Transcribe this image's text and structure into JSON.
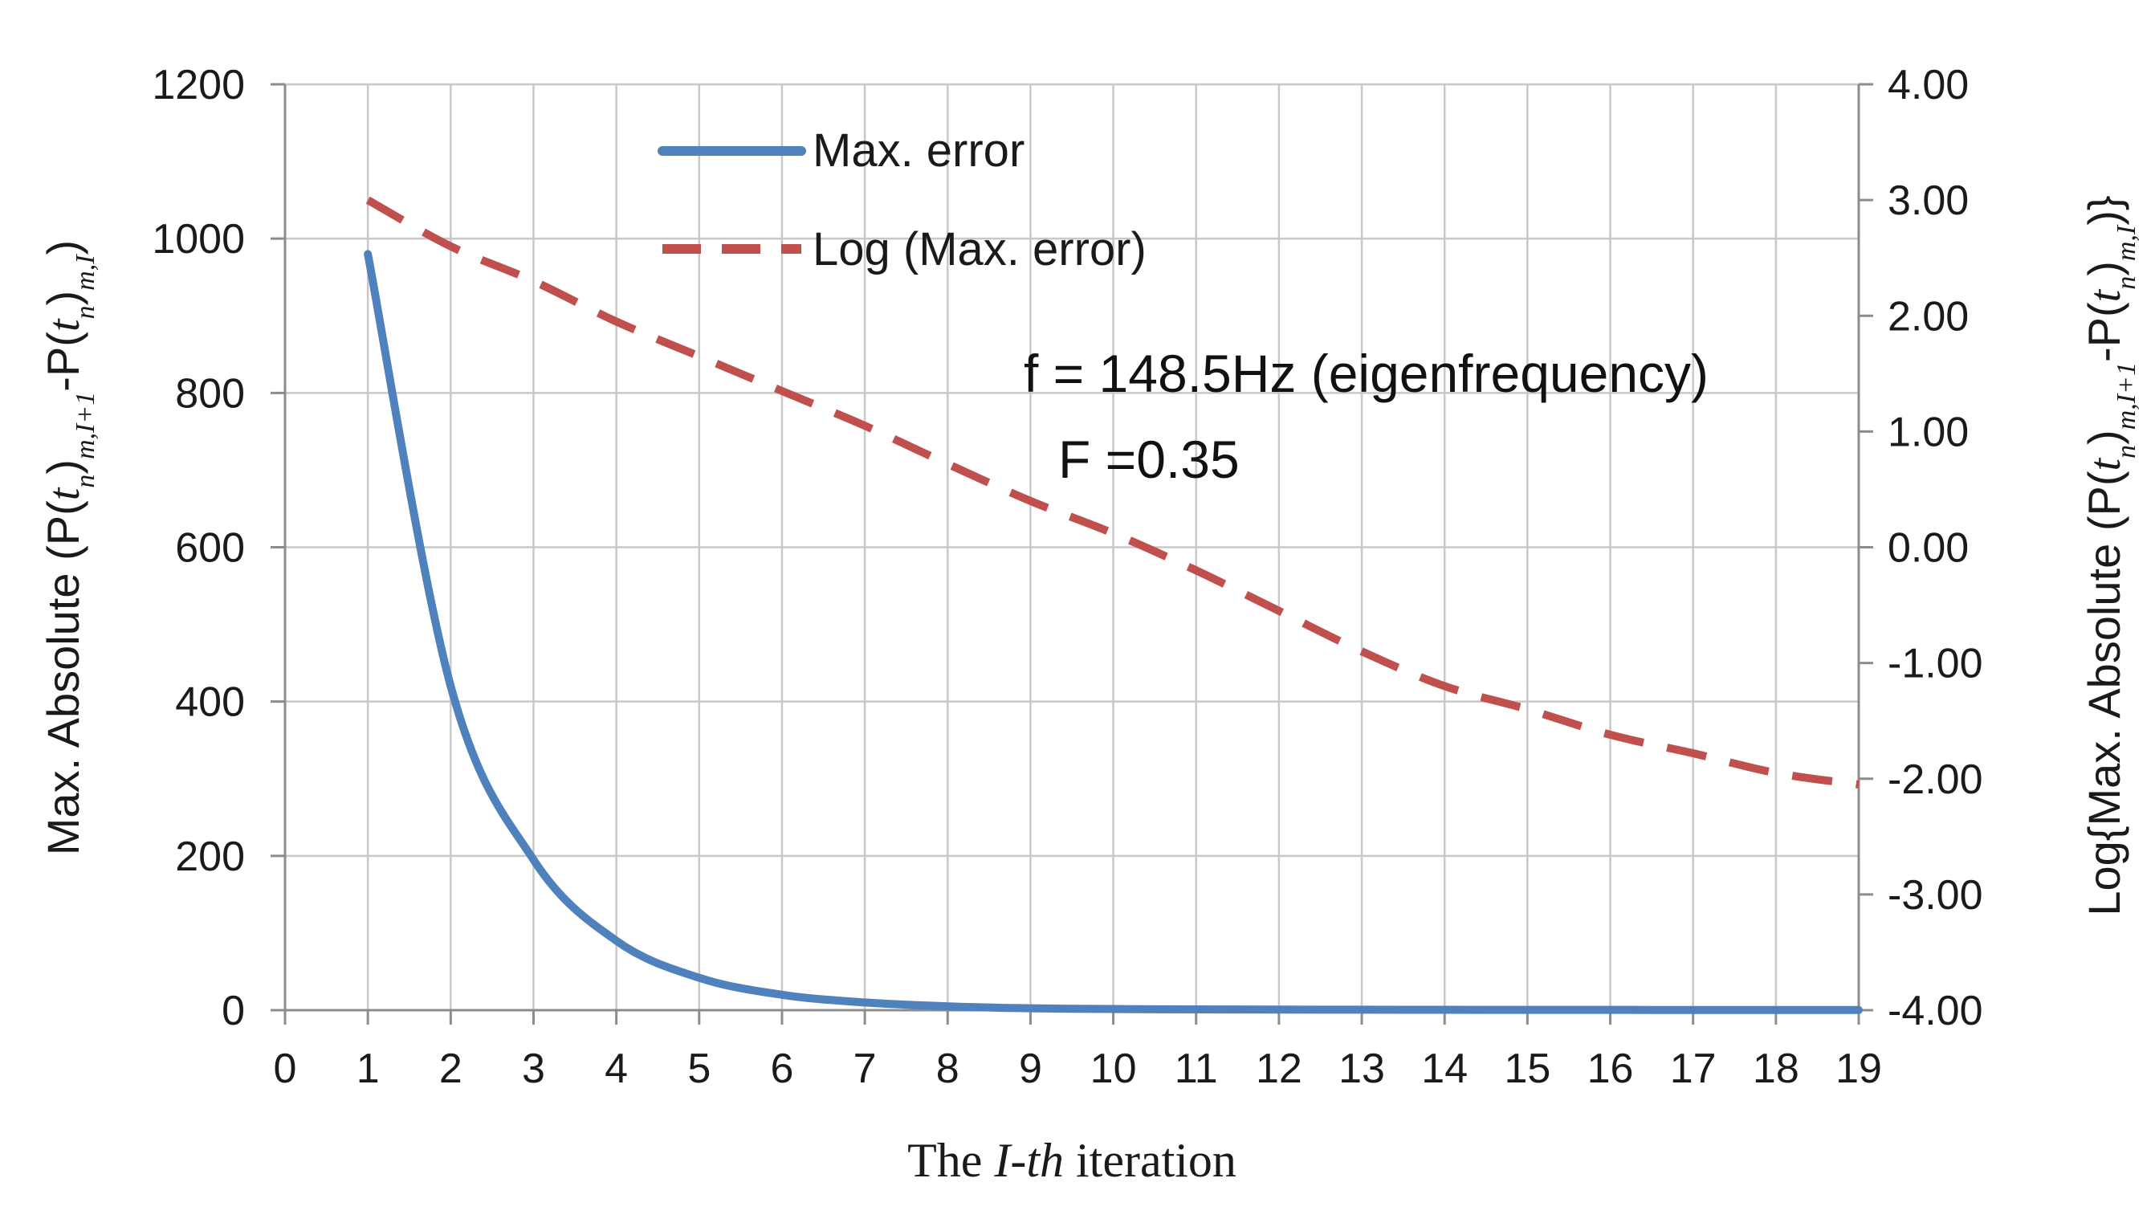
{
  "chart_data": {
    "type": "line",
    "x": [
      1,
      2,
      3,
      4,
      5,
      6,
      7,
      8,
      9,
      10,
      11,
      12,
      13,
      14,
      15,
      16,
      17,
      18,
      19
    ],
    "xlim": [
      0,
      19
    ],
    "xticks": [
      "0",
      "1",
      "2",
      "3",
      "4",
      "5",
      "6",
      "7",
      "8",
      "9",
      "10",
      "11",
      "12",
      "13",
      "14",
      "15",
      "16",
      "17",
      "18",
      "19"
    ],
    "xlabel": {
      "pre": "The ",
      "italic": "I-th",
      "post": " iteration"
    },
    "y_left": {
      "lim": [
        0,
        1200
      ],
      "ticks": [
        "0",
        "200",
        "400",
        "600",
        "800",
        "1000",
        "1200"
      ],
      "label": {
        "pre": "Max.  Absolute (P(",
        "t1": "t",
        "s1": "n",
        "mid1": ")",
        "s2": "m,I+1",
        "mid2": "-P(",
        "t2": "t",
        "s3": "n",
        "mid3": ")",
        "s4": "m,I",
        "post": ")"
      }
    },
    "y_right": {
      "lim": [
        -4,
        4
      ],
      "ticks": [
        "-4.00",
        "-3.00",
        "-2.00",
        "-1.00",
        "0.00",
        "1.00",
        "2.00",
        "3.00",
        "4.00"
      ],
      "label": {
        "pre": "Log{Max.  Absolute (P(",
        "t1": "t",
        "s1": "n",
        "mid1": ")",
        "s2": "m,I+1",
        "mid2": "-P(",
        "t2": "t",
        "s3": "n",
        "mid3": ")",
        "s4": "m,I",
        "post": ")}"
      }
    },
    "series": [
      {
        "name": "Max. error",
        "axis": "left",
        "color": "#4f81bd",
        "style": "solid",
        "values": [
          980,
          420,
          195,
          90,
          42,
          20,
          10,
          5,
          2.5,
          1.5,
          1,
          0.8,
          0.6,
          0.5,
          0.4,
          0.35,
          0.3,
          0.25,
          0.2
        ]
      },
      {
        "name": "Log (Max. error)",
        "axis": "right",
        "color": "#c0504d",
        "style": "dashed",
        "values": [
          3.0,
          2.6,
          2.3,
          1.95,
          1.65,
          1.35,
          1.05,
          0.72,
          0.4,
          0.12,
          -0.2,
          -0.55,
          -0.9,
          -1.2,
          -1.4,
          -1.62,
          -1.78,
          -1.95,
          -2.05
        ]
      }
    ],
    "annotations": [
      "f = 148.5Hz (eigenfrequency)",
      "F =0.35"
    ],
    "grid": true,
    "legend_position": "top-center"
  }
}
